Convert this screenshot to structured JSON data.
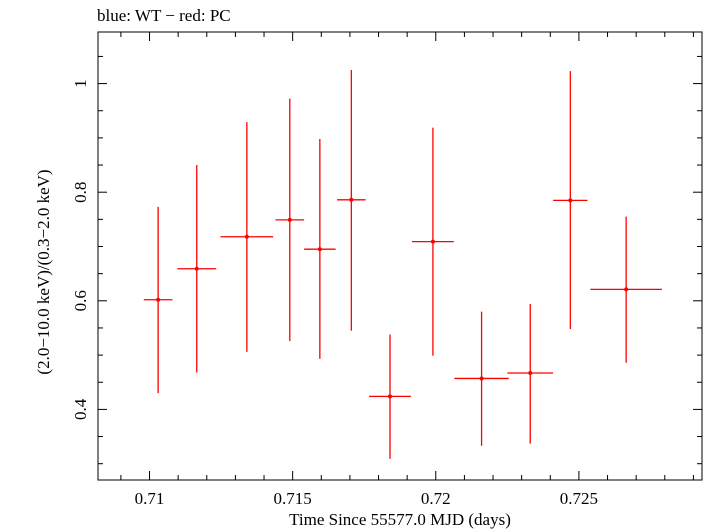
{
  "chart_data": {
    "type": "scatter",
    "title": "blue: WT − red: PC",
    "xlabel": "Time Since 55577.0 MJD (days)",
    "ylabel": "(2.0−10.0 keV)/(0.3−2.0 keV)",
    "xlim": [
      0.7082,
      0.7293
    ],
    "ylim": [
      0.27,
      1.095
    ],
    "xticks": [
      0.71,
      0.715,
      0.72,
      0.725
    ],
    "xtick_labels": [
      "0.71",
      "0.715",
      "0.72",
      "0.725"
    ],
    "yticks": [
      0.4,
      0.6,
      0.8,
      1.0
    ],
    "ytick_labels": [
      "0.4",
      "0.6",
      "0.8",
      "1"
    ],
    "grid": false,
    "series": [
      {
        "color": "#ff0000",
        "points": [
          {
            "x": 0.7103,
            "y": 0.602,
            "xerr": 0.0005,
            "ylo": 0.43,
            "yhi": 0.773
          },
          {
            "x": 0.71165,
            "y": 0.659,
            "xerr": 0.00068,
            "ylo": 0.468,
            "yhi": 0.85
          },
          {
            "x": 0.7134,
            "y": 0.718,
            "xerr": 0.00092,
            "ylo": 0.506,
            "yhi": 0.929
          },
          {
            "x": 0.7149,
            "y": 0.749,
            "xerr": 0.0005,
            "ylo": 0.526,
            "yhi": 0.972
          },
          {
            "x": 0.71595,
            "y": 0.695,
            "xerr": 0.00055,
            "ylo": 0.493,
            "yhi": 0.898
          },
          {
            "x": 0.71705,
            "y": 0.786,
            "xerr": 0.0005,
            "ylo": 0.545,
            "yhi": 1.025
          },
          {
            "x": 0.7184,
            "y": 0.424,
            "xerr": 0.00073,
            "ylo": 0.309,
            "yhi": 0.538
          },
          {
            "x": 0.7199,
            "y": 0.709,
            "xerr": 0.00073,
            "ylo": 0.499,
            "yhi": 0.919
          },
          {
            "x": 0.7216,
            "y": 0.457,
            "xerr": 0.00095,
            "ylo": 0.333,
            "yhi": 0.58
          },
          {
            "x": 0.7233,
            "y": 0.467,
            "xerr": 0.0008,
            "ylo": 0.337,
            "yhi": 0.594
          },
          {
            "x": 0.7247,
            "y": 0.785,
            "xerr": 0.0006,
            "ylo": 0.548,
            "yhi": 1.023
          },
          {
            "x": 0.72665,
            "y": 0.621,
            "xerr": 0.00125,
            "ylo": 0.486,
            "yhi": 0.755
          }
        ]
      }
    ]
  }
}
